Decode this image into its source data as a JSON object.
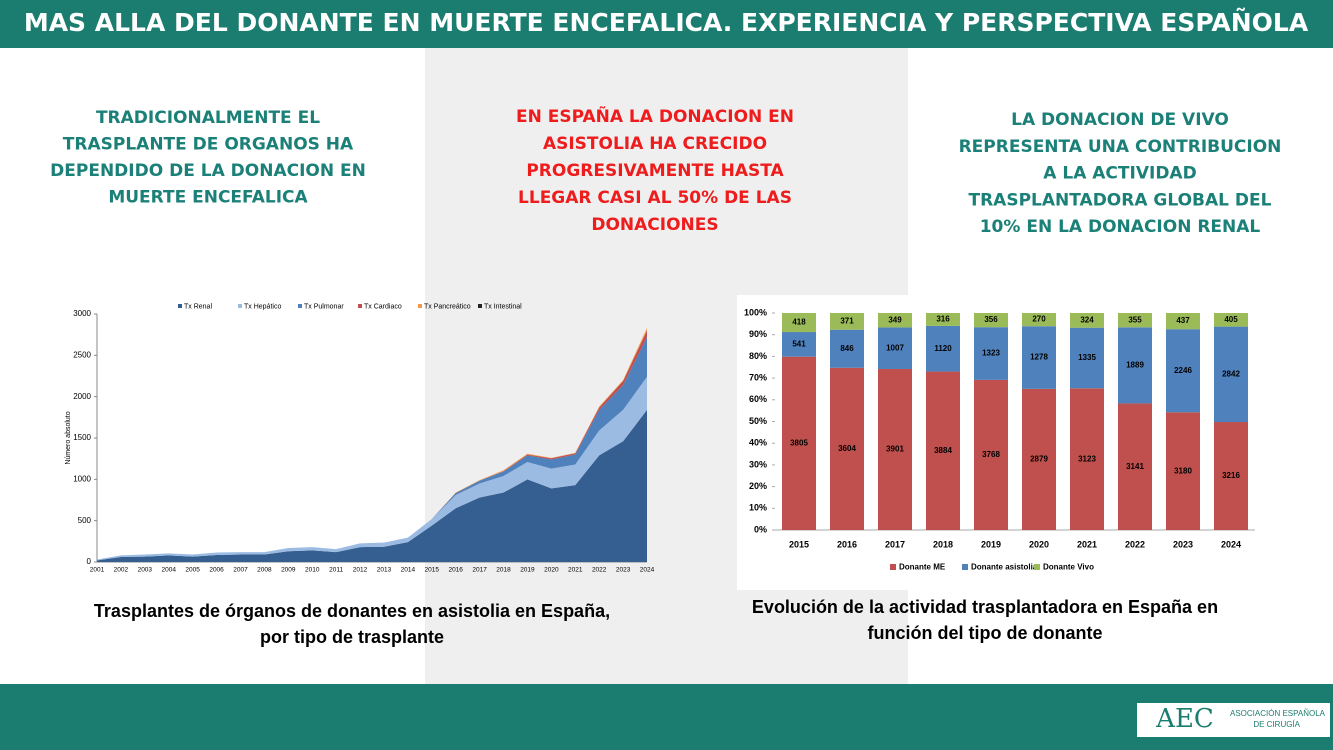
{
  "header": {
    "title": "MAS ALLA DEL DONANTE EN MUERTE ENCEFALICA. EXPERIENCIA Y PERSPECTIVA ESPAÑOLA"
  },
  "columns": [
    {
      "lines": [
        "TRADICIONALMENTE EL",
        "TRASPLANTE DE ORGANOS HA",
        "DEPENDIDO DE LA DONACION EN",
        "MUERTE ENCEFALICA"
      ]
    },
    {
      "lines": [
        "EN ESPAÑA LA DONACION EN",
        "ASISTOLIA HA CRECIDO",
        "PROGRESIVAMENTE HASTA",
        "LLEGAR CASI AL 50% DE LAS",
        "DONACIONES"
      ]
    },
    {
      "lines": [
        "LA DONACION DE VIVO",
        "REPRESENTA UNA CONTRIBUCION",
        "A LA ACTIVIDAD",
        "TRASPLANTADORA GLOBAL DEL",
        "10% EN LA DONACION RENAL"
      ]
    }
  ],
  "chart_data": [
    {
      "type": "area",
      "stacked": true,
      "caption": [
        "Trasplantes de órganos de donantes en asistolia en España,",
        "por tipo de trasplante"
      ],
      "y_label": "Número absoluto",
      "categories": [
        "2001",
        "2002",
        "2003",
        "2004",
        "2005",
        "2006",
        "2007",
        "2008",
        "2009",
        "2010",
        "2011",
        "2012",
        "2013",
        "2014",
        "2015",
        "2016",
        "2017",
        "2018",
        "2019",
        "2020",
        "2021",
        "2022",
        "2023",
        "2024"
      ],
      "ylim": [
        0,
        3000
      ],
      "yticks": [
        0,
        500,
        1000,
        1500,
        2000,
        2500,
        3000
      ],
      "series": [
        {
          "name": "Tx Renal",
          "color": "#365f91",
          "values": [
            20,
            60,
            65,
            80,
            65,
            85,
            90,
            90,
            130,
            140,
            120,
            180,
            185,
            240,
            440,
            650,
            780,
            840,
            1000,
            890,
            930,
            1290,
            1460,
            1840
          ]
        },
        {
          "name": "Tx Hepático",
          "color": "#9bbbe3",
          "values": [
            10,
            20,
            25,
            25,
            25,
            30,
            30,
            30,
            40,
            40,
            35,
            45,
            50,
            55,
            80,
            160,
            170,
            200,
            210,
            240,
            250,
            300,
            380,
            400
          ]
        },
        {
          "name": "Tx Pulmonar",
          "color": "#4f81bd",
          "values": [
            0,
            0,
            0,
            0,
            0,
            0,
            0,
            0,
            0,
            0,
            0,
            0,
            0,
            0,
            0,
            25,
            35,
            55,
            80,
            110,
            120,
            250,
            300,
            480
          ]
        },
        {
          "name": "Tx Cardiaco",
          "color": "#c0504d",
          "values": [
            0,
            0,
            0,
            0,
            0,
            0,
            0,
            0,
            0,
            0,
            0,
            0,
            0,
            0,
            0,
            0,
            0,
            5,
            10,
            15,
            15,
            30,
            50,
            80
          ]
        },
        {
          "name": "Tx Pancreático",
          "color": "#f79646",
          "values": [
            0,
            0,
            0,
            0,
            0,
            0,
            0,
            0,
            0,
            0,
            0,
            0,
            0,
            0,
            0,
            5,
            5,
            10,
            10,
            5,
            5,
            10,
            10,
            30
          ]
        },
        {
          "name": "Tx Intestinal",
          "color": "#222222",
          "values": [
            0,
            0,
            0,
            0,
            0,
            0,
            0,
            0,
            0,
            0,
            0,
            0,
            0,
            0,
            0,
            0,
            0,
            0,
            0,
            0,
            0,
            0,
            0,
            0
          ]
        }
      ]
    },
    {
      "type": "bar",
      "stacked": "percent",
      "caption": [
        "Evolución de la actividad trasplantadora en España en",
        "función del tipo de donante"
      ],
      "categories": [
        "2015",
        "2016",
        "2017",
        "2018",
        "2019",
        "2020",
        "2021",
        "2022",
        "2023",
        "2024"
      ],
      "ylim": [
        0,
        100
      ],
      "yticks": [
        {
          "value": 0,
          "label": "0%"
        },
        {
          "value": 10,
          "label": "10%"
        },
        {
          "value": 20,
          "label": "20%"
        },
        {
          "value": 30,
          "label": "30%"
        },
        {
          "value": 40,
          "label": "40%"
        },
        {
          "value": 50,
          "label": "50%"
        },
        {
          "value": 60,
          "label": "60%"
        },
        {
          "value": 70,
          "label": "70%"
        },
        {
          "value": 80,
          "label": "80%"
        },
        {
          "value": 90,
          "label": "90%"
        },
        {
          "value": 100,
          "label": "100%"
        }
      ],
      "series": [
        {
          "name": "Donante ME",
          "color": "#c0504d",
          "values": [
            3805,
            3604,
            3901,
            3884,
            3768,
            2879,
            3123,
            3141,
            3180,
            3216
          ]
        },
        {
          "name": "Donante asistolia",
          "color": "#4f81bd",
          "values": [
            541,
            846,
            1007,
            1120,
            1323,
            1278,
            1335,
            1889,
            2246,
            2842
          ]
        },
        {
          "name": "Donante Vivo",
          "color": "#9bbb59",
          "values": [
            418,
            371,
            349,
            316,
            356,
            270,
            324,
            355,
            437,
            405
          ]
        }
      ]
    }
  ],
  "footer": {
    "logo": "AEC",
    "org_lines": [
      "ASOCIACIÓN ESPAÑOLA",
      "DE CIRUGÍA"
    ]
  }
}
